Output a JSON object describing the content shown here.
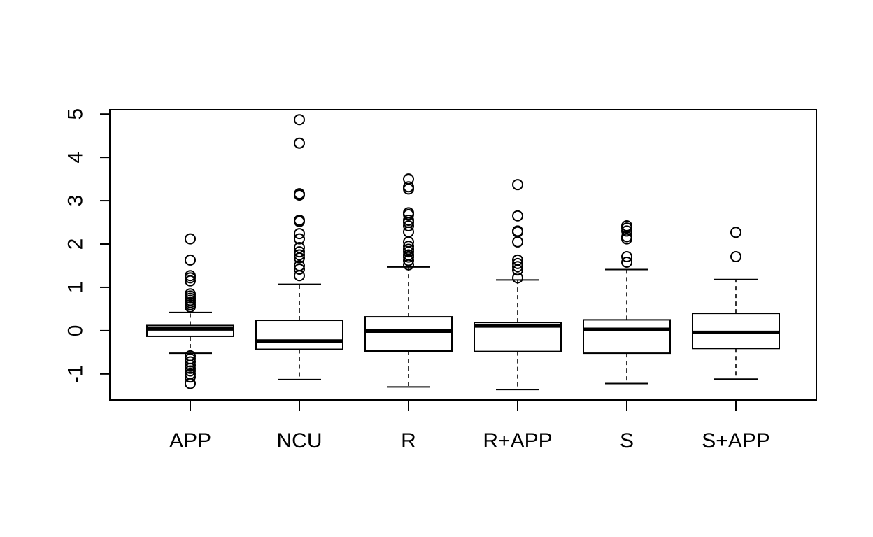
{
  "chart_data": {
    "type": "boxplot",
    "title": "",
    "xlabel": "",
    "ylabel": "",
    "ylim": [
      -1.6,
      5.1
    ],
    "y_ticks": [
      -1,
      0,
      1,
      2,
      3,
      4,
      5
    ],
    "y_tick_labels": [
      "-1",
      "0",
      "1",
      "2",
      "3",
      "4",
      "5"
    ],
    "grid": false,
    "categories": [
      "APP",
      "NCU",
      "R",
      "R+APP",
      "S",
      "S+APP"
    ],
    "boxes": [
      {
        "name": "APP",
        "whisker_low": -0.52,
        "q1": -0.13,
        "median": 0.04,
        "q3": 0.12,
        "whisker_high": 0.42,
        "outliers": [
          0.55,
          0.6,
          0.65,
          0.7,
          0.75,
          0.8,
          0.85,
          1.15,
          1.22,
          1.27,
          1.63,
          2.12,
          -0.58,
          -0.65,
          -0.72,
          -0.8,
          -0.87,
          -0.93,
          -1.0,
          -1.07,
          -1.22
        ]
      },
      {
        "name": "NCU",
        "whisker_low": -1.13,
        "q1": -0.43,
        "median": -0.24,
        "q3": 0.24,
        "whisker_high": 1.07,
        "outliers": [
          1.27,
          1.42,
          1.5,
          1.68,
          1.75,
          1.82,
          1.92,
          2.12,
          2.24,
          2.52,
          2.55,
          3.13,
          3.16,
          4.33,
          4.87
        ]
      },
      {
        "name": "R",
        "whisker_low": -1.3,
        "q1": -0.47,
        "median": -0.01,
        "q3": 0.32,
        "whisker_high": 1.47,
        "outliers": [
          1.52,
          1.62,
          1.7,
          1.75,
          1.82,
          1.88,
          1.95,
          2.05,
          2.28,
          2.42,
          2.5,
          2.55,
          2.68,
          2.72,
          3.27,
          3.32,
          3.5
        ]
      },
      {
        "name": "R+APP",
        "whisker_low": -1.36,
        "q1": -0.48,
        "median": 0.11,
        "q3": 0.19,
        "whisker_high": 1.17,
        "outliers": [
          1.22,
          1.4,
          1.48,
          1.55,
          1.63,
          2.05,
          2.28,
          2.3,
          2.65,
          3.37
        ]
      },
      {
        "name": "S",
        "whisker_low": -1.22,
        "q1": -0.52,
        "median": 0.03,
        "q3": 0.25,
        "whisker_high": 1.41,
        "outliers": [
          1.58,
          1.71,
          2.12,
          2.17,
          2.3,
          2.37,
          2.42
        ]
      },
      {
        "name": "S+APP",
        "whisker_low": -1.12,
        "q1": -0.41,
        "median": -0.04,
        "q3": 0.4,
        "whisker_high": 1.18,
        "outliers": [
          1.71,
          2.27
        ]
      }
    ]
  }
}
